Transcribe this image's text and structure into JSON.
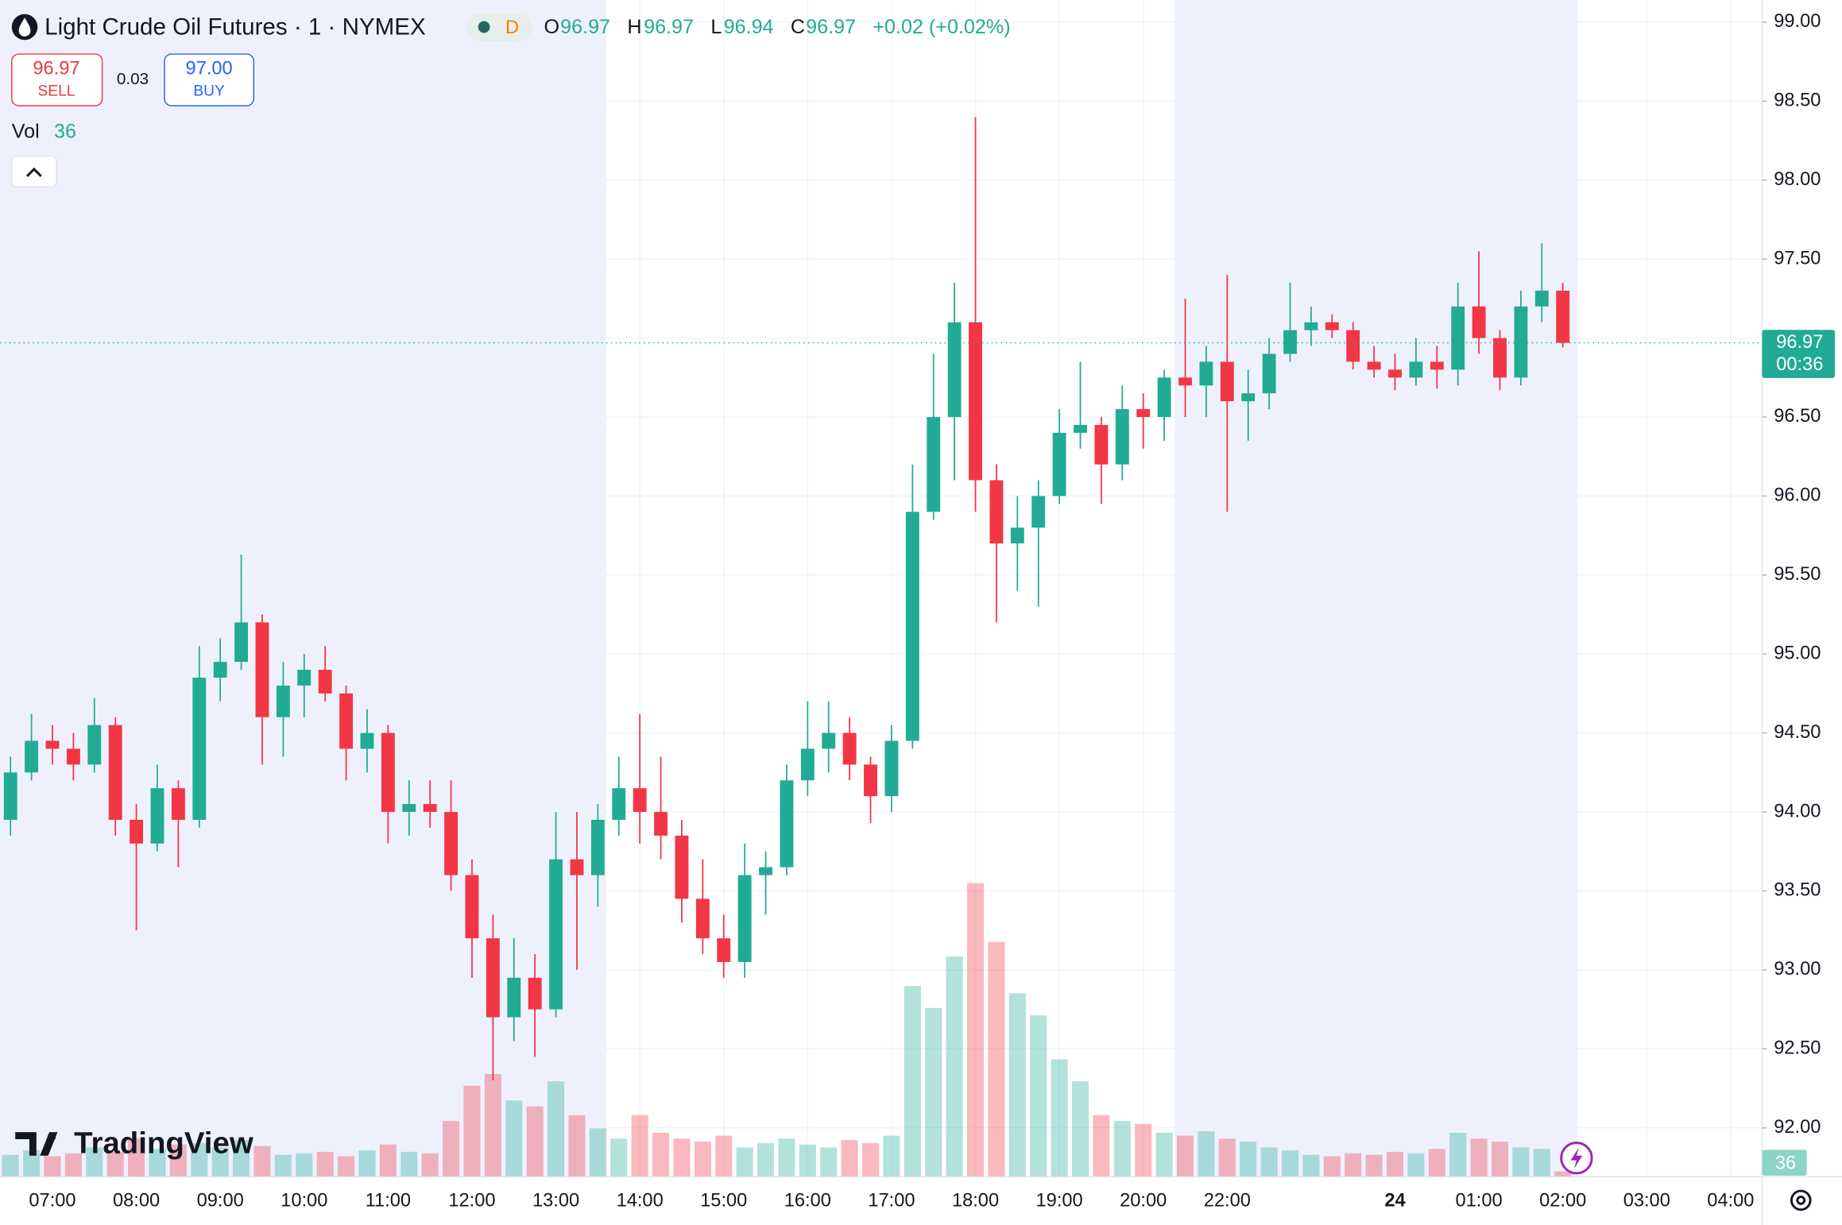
{
  "header": {
    "symbol_title": "Light Crude Oil Futures · 1 · NYMEX",
    "badge": "D",
    "open_label": "O",
    "open": 96.97,
    "high_label": "H",
    "high": 96.97,
    "low_label": "L",
    "low": 96.94,
    "close_label": "C",
    "close": 96.97,
    "change": "+0.02 (+0.02%)"
  },
  "trade": {
    "sell_price": 96.97,
    "sell_label": "SELL",
    "spread": 0.03,
    "buy_price": "97.00",
    "buy_label": "BUY"
  },
  "brand": "TradingView",
  "chart_data": {
    "type": "candlestick",
    "categories": [
      null,
      null,
      "07:00",
      null,
      null,
      null,
      "08:00",
      null,
      null,
      null,
      "09:00",
      null,
      null,
      null,
      "10:00",
      null,
      null,
      null,
      "11:00",
      null,
      null,
      null,
      "12:00",
      null,
      null,
      null,
      "13:00",
      null,
      null,
      null,
      "14:00",
      null,
      null,
      null,
      "15:00",
      null,
      null,
      null,
      "16:00",
      null,
      null,
      null,
      "17:00",
      null,
      null,
      null,
      "18:00",
      null,
      null,
      null,
      "19:00",
      null,
      null,
      null,
      "20:00",
      null,
      null,
      null,
      "22:00",
      null,
      null,
      null,
      null,
      null,
      null,
      null,
      "24",
      null,
      null,
      null,
      "01:00",
      null,
      null,
      null,
      "02:00",
      null,
      null,
      null,
      "03:00",
      null,
      null,
      null,
      "04:00",
      null
    ],
    "open": [
      93.95,
      94.25,
      94.45,
      94.4,
      94.3,
      94.55,
      93.95,
      93.8,
      94.15,
      93.95,
      94.85,
      94.95,
      95.2,
      94.6,
      94.8,
      94.9,
      94.75,
      94.4,
      94.5,
      94.0,
      94.05,
      94.0,
      93.6,
      93.2,
      92.7,
      92.95,
      92.75,
      93.7,
      93.6,
      93.95,
      94.15,
      94.0,
      93.85,
      93.45,
      93.2,
      93.05,
      93.6,
      93.65,
      94.2,
      94.4,
      94.5,
      94.3,
      94.1,
      94.45,
      95.9,
      96.5,
      97.1,
      96.1,
      95.7,
      95.8,
      96.0,
      96.4,
      96.45,
      96.2,
      96.55,
      96.5,
      96.75,
      96.7,
      96.85,
      96.6,
      96.65,
      96.9,
      97.05,
      97.1,
      97.05,
      96.85,
      96.8,
      96.75,
      96.85,
      96.8,
      97.2,
      97.0,
      96.75,
      97.2,
      97.3,
      null,
      null,
      null,
      null,
      null,
      null,
      null,
      null,
      null
    ],
    "high": [
      94.35,
      94.62,
      94.55,
      94.5,
      94.72,
      94.6,
      94.05,
      94.3,
      94.2,
      95.05,
      95.1,
      95.63,
      95.25,
      94.95,
      95.0,
      95.05,
      94.8,
      94.65,
      94.55,
      94.2,
      94.2,
      94.2,
      93.7,
      93.35,
      93.2,
      93.1,
      94.0,
      94.0,
      94.05,
      94.35,
      94.62,
      94.35,
      93.95,
      93.7,
      93.35,
      93.8,
      93.75,
      94.3,
      94.7,
      94.7,
      94.6,
      94.35,
      94.55,
      96.2,
      96.9,
      97.35,
      98.4,
      96.2,
      96.0,
      96.1,
      96.55,
      96.85,
      96.5,
      96.7,
      96.65,
      96.8,
      97.25,
      96.95,
      97.4,
      96.8,
      97.0,
      97.35,
      97.2,
      97.15,
      97.1,
      96.95,
      96.9,
      97.0,
      96.95,
      97.35,
      97.55,
      97.05,
      97.3,
      97.6,
      97.35,
      null,
      null,
      null,
      null,
      null,
      null,
      null,
      null,
      null
    ],
    "low": [
      93.85,
      94.2,
      94.3,
      94.2,
      94.25,
      93.85,
      93.25,
      93.75,
      93.65,
      93.9,
      94.7,
      94.9,
      94.3,
      94.35,
      94.6,
      94.7,
      94.2,
      94.25,
      93.8,
      93.85,
      93.9,
      93.5,
      92.95,
      92.3,
      92.55,
      92.45,
      92.7,
      93.0,
      93.4,
      93.85,
      93.8,
      93.7,
      93.3,
      93.1,
      92.95,
      92.95,
      93.35,
      93.6,
      94.1,
      94.25,
      94.2,
      93.93,
      94.0,
      94.4,
      95.85,
      96.1,
      95.9,
      95.2,
      95.4,
      95.3,
      95.95,
      96.3,
      95.95,
      96.1,
      96.3,
      96.35,
      96.5,
      96.5,
      95.9,
      96.35,
      96.55,
      96.85,
      96.95,
      97.0,
      96.8,
      96.75,
      96.67,
      96.7,
      96.68,
      96.7,
      96.9,
      96.67,
      96.7,
      97.1,
      96.94,
      null,
      null,
      null,
      null,
      null,
      null,
      null,
      null,
      null
    ],
    "close": [
      94.25,
      94.45,
      94.4,
      94.3,
      94.55,
      93.95,
      93.8,
      94.15,
      93.95,
      94.85,
      94.95,
      95.2,
      94.6,
      94.8,
      94.9,
      94.75,
      94.4,
      94.5,
      94.0,
      94.05,
      94.0,
      93.6,
      93.2,
      92.7,
      92.95,
      92.75,
      93.7,
      93.6,
      93.95,
      94.15,
      94.0,
      93.85,
      93.45,
      93.2,
      93.05,
      93.6,
      93.65,
      94.2,
      94.4,
      94.5,
      94.3,
      94.1,
      94.45,
      95.9,
      96.5,
      97.1,
      96.1,
      95.7,
      95.8,
      96.0,
      96.4,
      96.45,
      96.2,
      96.55,
      96.5,
      96.75,
      96.7,
      96.85,
      96.6,
      96.65,
      96.9,
      97.05,
      97.1,
      97.05,
      96.85,
      96.8,
      96.75,
      96.85,
      96.8,
      97.2,
      97.0,
      96.75,
      97.2,
      97.3,
      96.97,
      null,
      null,
      null,
      null,
      null,
      null,
      null,
      null,
      null
    ],
    "volume": [
      150,
      180,
      140,
      160,
      200,
      170,
      260,
      190,
      220,
      230,
      200,
      250,
      210,
      150,
      160,
      170,
      140,
      180,
      220,
      170,
      160,
      380,
      620,
      700,
      520,
      480,
      650,
      420,
      330,
      260,
      420,
      300,
      260,
      240,
      280,
      200,
      230,
      260,
      220,
      200,
      250,
      230,
      280,
      1300,
      1150,
      1500,
      2000,
      1600,
      1250,
      1100,
      800,
      650,
      420,
      380,
      360,
      300,
      280,
      310,
      260,
      240,
      200,
      180,
      150,
      140,
      160,
      150,
      170,
      160,
      190,
      300,
      260,
      240,
      200,
      190,
      36,
      null,
      null,
      null,
      null,
      null,
      null,
      null,
      null,
      null
    ],
    "up_color": "#22ab94",
    "down_color": "#f23645",
    "ylim": [
      91.69,
      99.14
    ],
    "yticks": [
      {
        "value": 92,
        "label": "92.00"
      },
      {
        "value": 92.5,
        "label": "92.50"
      },
      {
        "value": 93,
        "label": "93.00"
      },
      {
        "value": 93.5,
        "label": "93.50"
      },
      {
        "value": 94,
        "label": "94.00"
      },
      {
        "value": 94.5,
        "label": "94.50"
      },
      {
        "value": 95,
        "label": "95.00"
      },
      {
        "value": 95.5,
        "label": "95.50"
      },
      {
        "value": 96,
        "label": "96.00"
      },
      {
        "value": 96.5,
        "label": "96.50"
      },
      {
        "value": 97,
        "label": "97.00"
      },
      {
        "value": 97.5,
        "label": "97.50"
      },
      {
        "value": 98,
        "label": "98.00"
      },
      {
        "value": 98.5,
        "label": "98.50"
      },
      {
        "value": 99,
        "label": "99.00"
      }
    ],
    "grid": true,
    "last_price": 96.97,
    "countdown": "00:36",
    "vol_label": "Vol",
    "current_volume": 36
  }
}
